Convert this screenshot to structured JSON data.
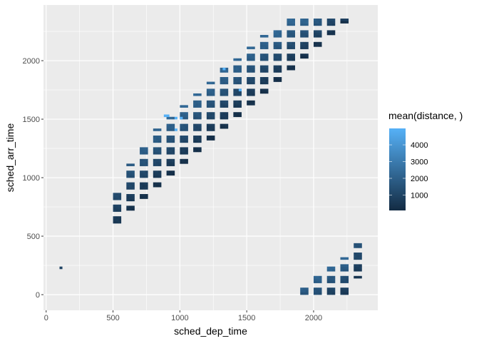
{
  "chart_data": {
    "type": "heatmap",
    "xlabel": "sched_dep_time",
    "ylabel": "sched_arr_time",
    "xlim": [
      -20,
      2480
    ],
    "ylim": [
      -134,
      2476
    ],
    "x_ticks": [
      0,
      500,
      1000,
      1500,
      2000
    ],
    "y_ticks": [
      0,
      500,
      1000,
      1500,
      2000
    ],
    "x_tick_labels": [
      "0",
      "500",
      "1000",
      "1500",
      "2000"
    ],
    "y_tick_labels": [
      "0",
      "500",
      "1000",
      "1500",
      "2000"
    ],
    "grid": true,
    "legend": {
      "title": "mean(distance,  )",
      "placement": "right",
      "ticks": [
        1000,
        2000,
        3000,
        4000
      ],
      "tick_labels": [
        "1000",
        "2000",
        "3000",
        "4000"
      ],
      "limits": [
        80,
        4983
      ],
      "low_color": "#132B43",
      "high_color": "#56B1F7"
    },
    "bin_width": 20,
    "bands": [
      {
        "dep_hour": 5,
        "arr_min": 610,
        "arr_max": 900,
        "mean_low": 500,
        "mean_high": 1400
      },
      {
        "dep_hour": 6,
        "arr_min": 720,
        "arr_max": 1100,
        "mean_low": 300,
        "mean_high": 1800
      },
      {
        "dep_hour": 7,
        "arr_min": 820,
        "arr_max": 1240,
        "mean_low": 250,
        "mean_high": 2000
      },
      {
        "dep_hour": 8,
        "arr_min": 920,
        "arr_max": 1400,
        "mean_low": 250,
        "mean_high": 2200
      },
      {
        "dep_hour": 9,
        "arr_min": 1020,
        "arr_max": 1500,
        "mean_low": 250,
        "mean_high": 2300
      },
      {
        "dep_hour": 10,
        "arr_min": 1120,
        "arr_max": 1600,
        "mean_low": 250,
        "mean_high": 2300
      },
      {
        "dep_hour": 11,
        "arr_min": 1220,
        "arr_max": 1700,
        "mean_low": 250,
        "mean_high": 2300
      },
      {
        "dep_hour": 12,
        "arr_min": 1320,
        "arr_max": 1800,
        "mean_low": 250,
        "mean_high": 2300
      },
      {
        "dep_hour": 13,
        "arr_min": 1420,
        "arr_max": 1920,
        "mean_low": 250,
        "mean_high": 2300
      },
      {
        "dep_hour": 14,
        "arr_min": 1520,
        "arr_max": 2000,
        "mean_low": 250,
        "mean_high": 2300
      },
      {
        "dep_hour": 15,
        "arr_min": 1620,
        "arr_max": 2100,
        "mean_low": 250,
        "mean_high": 2300
      },
      {
        "dep_hour": 16,
        "arr_min": 1720,
        "arr_max": 2200,
        "mean_low": 250,
        "mean_high": 2300
      },
      {
        "dep_hour": 17,
        "arr_min": 1820,
        "arr_max": 2240,
        "mean_low": 250,
        "mean_high": 2300
      },
      {
        "dep_hour": 18,
        "arr_min": 1920,
        "arr_max": 2340,
        "mean_low": 250,
        "mean_high": 2300
      },
      {
        "dep_hour": 19,
        "arr_min": 2020,
        "arr_max": 2340,
        "mean_low": 250,
        "mean_high": 2200
      },
      {
        "dep_hour": 20,
        "arr_min": 2120,
        "arr_max": 2340,
        "mean_low": 300,
        "mean_high": 1800
      },
      {
        "dep_hour": 21,
        "arr_min": 2220,
        "arr_max": 2340,
        "mean_low": 300,
        "mean_high": 1200
      },
      {
        "dep_hour": 22,
        "arr_min": 2320,
        "arr_max": 2340,
        "mean_low": 300,
        "mean_high": 800
      },
      {
        "dep_hour": 19,
        "arr_min": 0,
        "arr_max": 40,
        "mean_low": 1500,
        "mean_high": 2000
      },
      {
        "dep_hour": 20,
        "arr_min": 0,
        "arr_max": 140,
        "mean_low": 1400,
        "mean_high": 2200
      },
      {
        "dep_hour": 21,
        "arr_min": 0,
        "arr_max": 220,
        "mean_low": 800,
        "mean_high": 2300
      },
      {
        "dep_hour": 22,
        "arr_min": 0,
        "arr_max": 300,
        "mean_low": 600,
        "mean_high": 2300
      },
      {
        "dep_hour": 23,
        "arr_min": 140,
        "arr_max": 420,
        "mean_low": 500,
        "mean_high": 1500
      }
    ],
    "cells": [
      {
        "x": 100,
        "y": 220,
        "value": 1000
      },
      {
        "x": 880,
        "y": 1520,
        "value": 4983
      },
      {
        "x": 900,
        "y": 1520,
        "value": 4983
      },
      {
        "x": 960,
        "y": 1500,
        "value": 4983
      },
      {
        "x": 960,
        "y": 1400,
        "value": 4983
      },
      {
        "x": 1000,
        "y": 1500,
        "value": 4983
      },
      {
        "x": 1320,
        "y": 1920,
        "value": 4983
      },
      {
        "x": 1440,
        "y": 1740,
        "value": 4983
      }
    ]
  }
}
